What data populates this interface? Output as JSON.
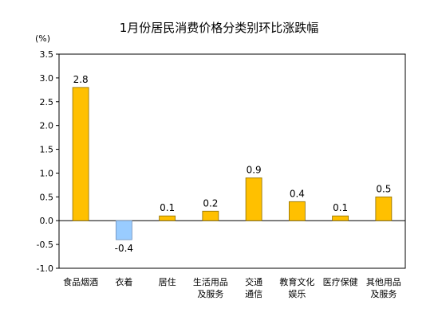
{
  "chart_data": {
    "type": "bar",
    "title": "1月份居民消费价格分类别环比涨跌幅",
    "yunit": "(%)",
    "ylim": [
      -1.0,
      3.5
    ],
    "yticks": [
      "3.5",
      "3.0",
      "2.5",
      "2.0",
      "1.5",
      "1.0",
      "0.5",
      "0.0",
      "-0.5",
      "-1.0"
    ],
    "ytick_values": [
      3.5,
      3.0,
      2.5,
      2.0,
      1.5,
      1.0,
      0.5,
      0.0,
      -0.5,
      -1.0
    ],
    "categories": [
      [
        "食品烟酒"
      ],
      [
        "衣着"
      ],
      [
        "居住"
      ],
      [
        "生活用品",
        "及服务"
      ],
      [
        "交通",
        "通信"
      ],
      [
        "教育文化",
        "娱乐"
      ],
      [
        "医疗保健"
      ],
      [
        "其他用品",
        "及服务"
      ]
    ],
    "values": [
      2.8,
      -0.4,
      0.1,
      0.2,
      0.9,
      0.4,
      0.1,
      0.5
    ],
    "data_labels": [
      "2.8",
      "-0.4",
      "0.1",
      "0.2",
      "0.9",
      "0.4",
      "0.1",
      "0.5"
    ],
    "colors": {
      "positive": "#FFC000",
      "negative": "#99CCFF",
      "bar_border": "#8c6d00",
      "neg_border": "#6f8fb8",
      "frame": "#000000"
    },
    "grid": false,
    "legend": "none"
  }
}
